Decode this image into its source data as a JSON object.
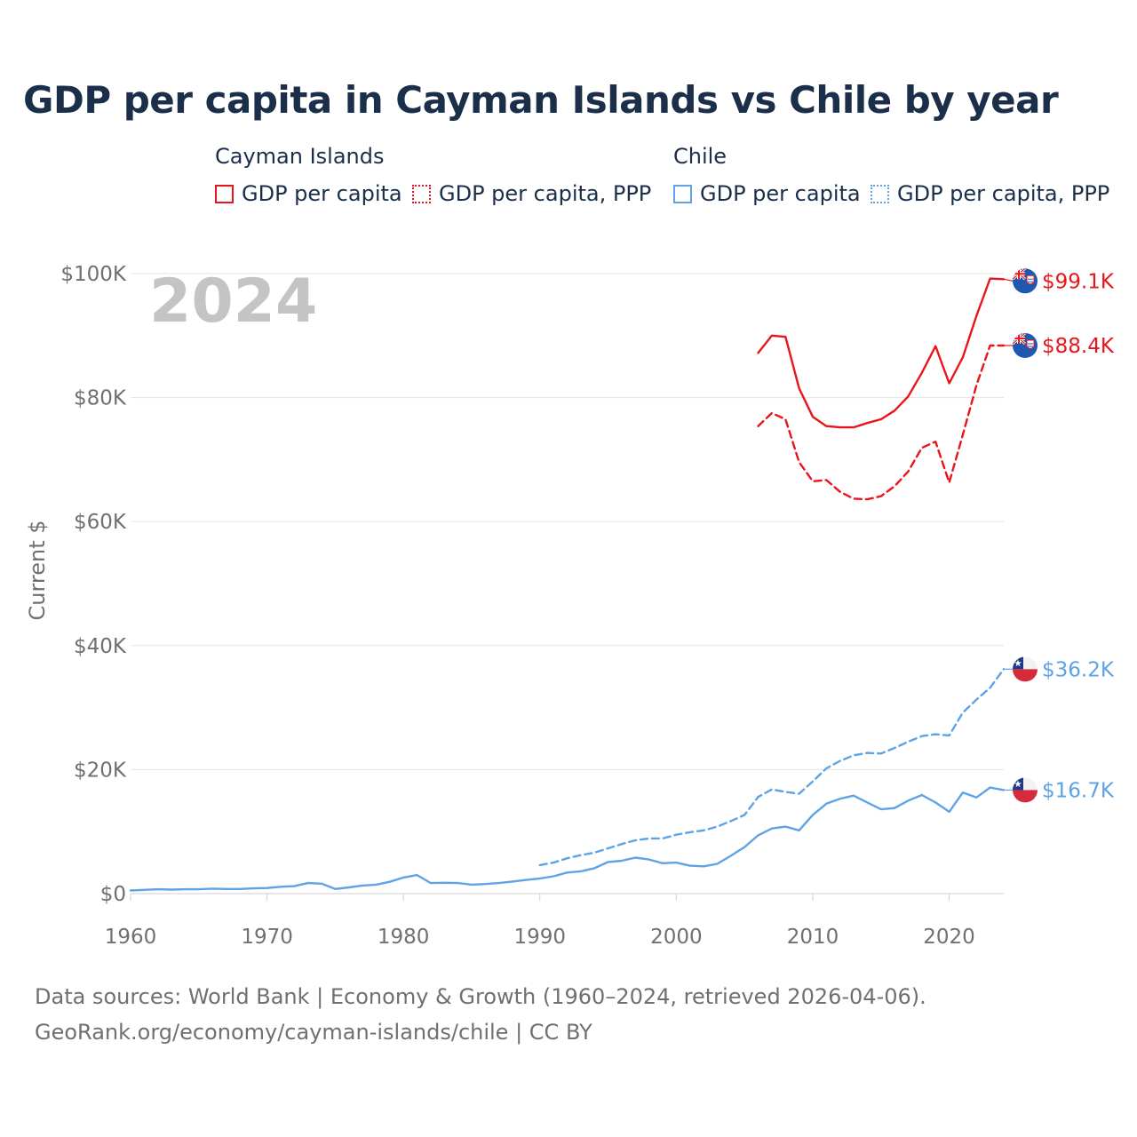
{
  "title": "GDP per capita in Cayman Islands vs Chile by year",
  "legend": {
    "groups": [
      {
        "country": "Cayman Islands",
        "color": "#e8161b",
        "items": [
          {
            "label": "GDP per capita",
            "style": "solid"
          },
          {
            "label": "GDP per capita, PPP",
            "style": "dotted"
          }
        ]
      },
      {
        "country": "Chile",
        "color": "#5da3e6",
        "items": [
          {
            "label": "GDP per capita",
            "style": "solid"
          },
          {
            "label": "GDP per capita, PPP",
            "style": "dotted"
          }
        ]
      }
    ]
  },
  "footer": {
    "line1": "Data sources: World Bank | Economy & Growth (1960–2024, retrieved 2026-04-06).",
    "line2": "GeoRank.org/economy/cayman-islands/chile | CC BY"
  },
  "chart_data": {
    "type": "line",
    "year_watermark": "2024",
    "ylabel": "Current $",
    "xlim": [
      1960,
      2024
    ],
    "ylim": [
      0,
      100000
    ],
    "x_ticks": [
      1960,
      1970,
      1980,
      1990,
      2000,
      2010,
      2020
    ],
    "y_ticks": [
      {
        "value": 0,
        "label": "$0"
      },
      {
        "value": 20000,
        "label": "$20K"
      },
      {
        "value": 40000,
        "label": "$40K"
      },
      {
        "value": 60000,
        "label": "$60K"
      },
      {
        "value": 80000,
        "label": "$80K"
      },
      {
        "value": 100000,
        "label": "$100K"
      }
    ],
    "series": [
      {
        "name": "Cayman Islands GDP per capita",
        "country": "Cayman Islands",
        "dash": "solid",
        "color": "#e8161b",
        "end_label": "$99.1K",
        "x": [
          2006,
          2007,
          2008,
          2009,
          2010,
          2011,
          2012,
          2013,
          2014,
          2015,
          2016,
          2017,
          2018,
          2019,
          2020,
          2021,
          2022,
          2023,
          2024
        ],
        "y": [
          87200,
          90000,
          89800,
          81500,
          76900,
          75400,
          75200,
          75200,
          75900,
          76500,
          77900,
          80200,
          84000,
          88300,
          82300,
          86500,
          93200,
          99200,
          99100
        ]
      },
      {
        "name": "Cayman Islands GDP per capita, PPP",
        "country": "Cayman Islands",
        "dash": "dashed",
        "color": "#e8161b",
        "end_label": "$88.4K",
        "x": [
          2006,
          2007,
          2008,
          2009,
          2010,
          2011,
          2012,
          2013,
          2014,
          2015,
          2016,
          2017,
          2018,
          2019,
          2020,
          2021,
          2022,
          2023,
          2024
        ],
        "y": [
          75400,
          77500,
          76500,
          69600,
          66500,
          66700,
          64800,
          63700,
          63600,
          64100,
          65700,
          68100,
          71900,
          72900,
          66300,
          74000,
          82000,
          88400,
          88400
        ]
      },
      {
        "name": "Chile GDP per capita, PPP",
        "country": "Chile",
        "dash": "dashed",
        "color": "#5da3e6",
        "end_label": "$36.2K",
        "x": [
          1990,
          1991,
          1992,
          1993,
          1994,
          1995,
          1996,
          1997,
          1998,
          1999,
          2000,
          2001,
          2002,
          2003,
          2004,
          2005,
          2006,
          2007,
          2008,
          2009,
          2010,
          2011,
          2012,
          2013,
          2014,
          2015,
          2016,
          2017,
          2018,
          2019,
          2020,
          2021,
          2022,
          2023,
          2024
        ],
        "y": [
          4600,
          5000,
          5700,
          6200,
          6600,
          7300,
          8000,
          8600,
          8900,
          8900,
          9500,
          9900,
          10200,
          10800,
          11700,
          12700,
          15600,
          16800,
          16400,
          16100,
          18100,
          20200,
          21400,
          22300,
          22700,
          22600,
          23500,
          24500,
          25400,
          25700,
          25500,
          29200,
          31300,
          33200,
          36200
        ]
      },
      {
        "name": "Chile GDP per capita",
        "country": "Chile",
        "dash": "solid",
        "color": "#5da3e6",
        "end_label": "$16.7K",
        "x": [
          1960,
          1961,
          1962,
          1963,
          1964,
          1965,
          1966,
          1967,
          1968,
          1969,
          1970,
          1971,
          1972,
          1973,
          1974,
          1975,
          1976,
          1977,
          1978,
          1979,
          1980,
          1981,
          1982,
          1983,
          1984,
          1985,
          1986,
          1987,
          1988,
          1989,
          1990,
          1991,
          1992,
          1993,
          1994,
          1995,
          1996,
          1997,
          1998,
          1999,
          2000,
          2001,
          2002,
          2003,
          2004,
          2005,
          2006,
          2007,
          2008,
          2009,
          2010,
          2011,
          2012,
          2013,
          2014,
          2015,
          2016,
          2017,
          2018,
          2019,
          2020,
          2021,
          2022,
          2023,
          2024
        ],
        "y": [
          500,
          600,
          700,
          650,
          700,
          700,
          800,
          750,
          750,
          850,
          900,
          1100,
          1200,
          1700,
          1600,
          750,
          1000,
          1300,
          1450,
          1900,
          2600,
          3000,
          1700,
          1750,
          1700,
          1450,
          1550,
          1700,
          1950,
          2200,
          2450,
          2800,
          3400,
          3600,
          4100,
          5100,
          5300,
          5800,
          5500,
          4900,
          5000,
          4500,
          4400,
          4800,
          6100,
          7500,
          9400,
          10500,
          10800,
          10200,
          12700,
          14500,
          15300,
          15800,
          14700,
          13600,
          13800,
          15000,
          15900,
          14700,
          13200,
          16300,
          15500,
          17100,
          16700
        ]
      }
    ]
  }
}
